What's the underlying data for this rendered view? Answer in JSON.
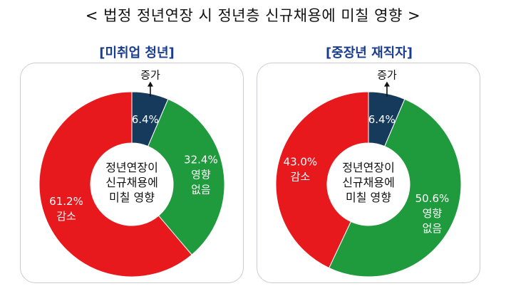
{
  "title": "< 법정 정년연장 시 정년층 신규채용에 미칠 영향 >",
  "colors": {
    "increase": "#153a5b",
    "no_effect": "#1f9a3c",
    "decrease": "#e8191d"
  },
  "chart_data": [
    {
      "type": "pie",
      "title": "[미취업 청년]",
      "center_label": [
        "정년연장이",
        "신규채용에",
        "미칠 영향"
      ],
      "slices": [
        {
          "name": "증가",
          "value": 6.4,
          "label": "6.4%",
          "color": "#153a5b"
        },
        {
          "name": "영향 없음",
          "value": 32.4,
          "label": "32.4%",
          "name_lines": [
            "영향",
            "없음"
          ],
          "color": "#1f9a3c"
        },
        {
          "name": "감소",
          "value": 61.2,
          "label": "61.2%",
          "name_lines": [
            "감소"
          ],
          "color": "#e8191d"
        }
      ]
    },
    {
      "type": "pie",
      "title": "[중장년 재직자]",
      "center_label": [
        "정년연장이",
        "신규채용에",
        "미칠 영향"
      ],
      "slices": [
        {
          "name": "증가",
          "value": 6.4,
          "label": "6.4%",
          "color": "#153a5b"
        },
        {
          "name": "영향 없음",
          "value": 50.6,
          "label": "50.6%",
          "name_lines": [
            "영향",
            "없음"
          ],
          "color": "#1f9a3c"
        },
        {
          "name": "감소",
          "value": 43.0,
          "label": "43.0%",
          "name_lines": [
            "감소"
          ],
          "color": "#e8191d"
        }
      ]
    }
  ]
}
